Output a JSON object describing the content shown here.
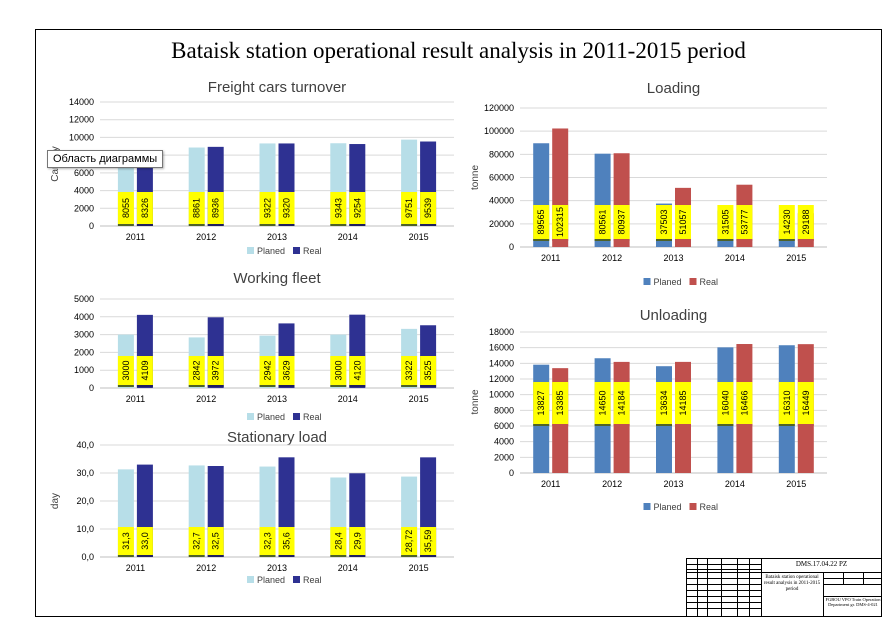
{
  "title": "Bataisk station operational result analysis in 2011-2015 period",
  "tooltip": "Область диаграммы",
  "colors": {
    "planed_light": "#b7dee8",
    "real_dark": "#2e3192",
    "planed_blue": "#4f81bd",
    "real_red": "#c0504d",
    "label_bg": "#ffff00"
  },
  "chart_data": [
    {
      "id": "freight",
      "type": "bar",
      "title": "Freight cars turnover",
      "ylabel": "Car·day",
      "categories": [
        "2011",
        "2012",
        "2013",
        "2014",
        "2015"
      ],
      "series": [
        {
          "name": "Planed",
          "values": [
            8055,
            8861,
            9322,
            9343,
            9751
          ]
        },
        {
          "name": "Real",
          "values": [
            8326,
            8936,
            9320,
            9254,
            9539
          ]
        }
      ],
      "labels": [
        [
          "8055",
          "8861",
          "9322",
          "9343",
          "9751"
        ],
        [
          "8326",
          "8936",
          "9320",
          "9254",
          "9539"
        ]
      ],
      "ylim": [
        0,
        14000
      ],
      "ticks": [
        "0",
        "2000",
        "4000",
        "6000",
        "8000",
        "10000",
        "12000",
        "14000"
      ],
      "grid": true,
      "legend": "bottom"
    },
    {
      "id": "working",
      "type": "bar",
      "title": "Working fleet",
      "ylabel": "",
      "categories": [
        "2011",
        "2012",
        "2013",
        "2014",
        "2015"
      ],
      "series": [
        {
          "name": "Planed",
          "values": [
            3000,
            2842,
            2942,
            3000,
            3322
          ]
        },
        {
          "name": "Real",
          "values": [
            4109,
            3972,
            3629,
            4120,
            3525
          ]
        }
      ],
      "labels": [
        [
          "3000",
          "2842",
          "2942",
          "3000",
          "3322"
        ],
        [
          "4109",
          "3972",
          "3629",
          "4120",
          "3525"
        ]
      ],
      "ylim": [
        0,
        5000
      ],
      "ticks": [
        "0",
        "1000",
        "2000",
        "3000",
        "4000",
        "5000"
      ],
      "grid": true,
      "legend": "bottom"
    },
    {
      "id": "stationary",
      "type": "bar",
      "title": "Stationary load",
      "ylabel": "day",
      "categories": [
        "2011",
        "2012",
        "2013",
        "2014",
        "2015"
      ],
      "series": [
        {
          "name": "Planed",
          "values": [
            31.3,
            32.7,
            32.3,
            28.4,
            28.72
          ]
        },
        {
          "name": "Real",
          "values": [
            33.0,
            32.5,
            35.6,
            29.9,
            35.59
          ]
        }
      ],
      "labels": [
        [
          "31,3",
          "32,7",
          "32,3",
          "28,4",
          "28,72"
        ],
        [
          "33,0",
          "32,5",
          "35,6",
          "29,9",
          "35,59"
        ]
      ],
      "ylim": [
        0,
        40
      ],
      "ticks": [
        "0,0",
        "10,0",
        "20,0",
        "30,0",
        "40,0"
      ],
      "grid": true,
      "legend": "bottom"
    },
    {
      "id": "loading",
      "type": "bar",
      "title": "Loading",
      "ylabel": "tonne",
      "categories": [
        "2011",
        "2012",
        "2013",
        "2014",
        "2015"
      ],
      "series": [
        {
          "name": "Planed",
          "values": [
            89565,
            80561,
            37503,
            31505,
            14230
          ]
        },
        {
          "name": "Real",
          "values": [
            102315,
            80937,
            51057,
            53777,
            29188
          ]
        }
      ],
      "labels": [
        [
          "89565",
          "80561",
          "37503",
          "31505",
          "14230"
        ],
        [
          "102315",
          "80937",
          "51057",
          "53777",
          "29188"
        ]
      ],
      "ylim": [
        0,
        120000
      ],
      "ticks": [
        "0",
        "20000",
        "40000",
        "60000",
        "80000",
        "100000",
        "120000"
      ],
      "grid": true,
      "legend": "bottom"
    },
    {
      "id": "unloading",
      "type": "bar",
      "title": "Unloading",
      "ylabel": "tonne",
      "categories": [
        "2011",
        "2012",
        "2013",
        "2014",
        "2015"
      ],
      "series": [
        {
          "name": "Planed",
          "values": [
            13827,
            14650,
            13634,
            16040,
            16310
          ]
        },
        {
          "name": "Real",
          "values": [
            13385,
            14184,
            14185,
            16466,
            16449
          ]
        }
      ],
      "labels": [
        [
          "13827",
          "14650",
          "13634",
          "16040",
          "16310"
        ],
        [
          "13385",
          "14184",
          "14185",
          "16466",
          "16449"
        ]
      ],
      "ylim": [
        0,
        18000
      ],
      "ticks": [
        "0",
        "2000",
        "4000",
        "6000",
        "8000",
        "10000",
        "12000",
        "14000",
        "16000",
        "18000"
      ],
      "grid": true,
      "legend": "bottom"
    }
  ],
  "stamp": {
    "code": "DMS.17.04.22 PZ",
    "description": "Bataisk station operational result analysis in 2011-2015 period",
    "organization": "FGBOU VPO Train Operation Department gr. DMS-4-021"
  }
}
